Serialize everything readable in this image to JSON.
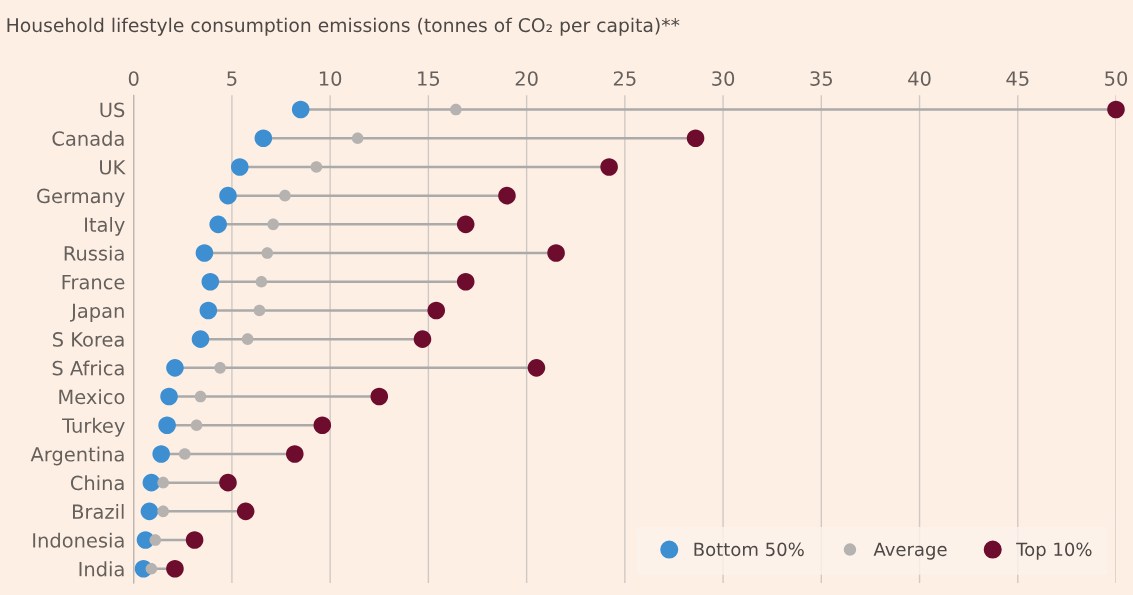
{
  "chart_data": {
    "type": "scatter",
    "orientation": "horizontal",
    "title": "Household lifestyle consumption emissions (tonnes of CO₂ per capita)**",
    "categories": [
      "US",
      "Canada",
      "UK",
      "Germany",
      "Italy",
      "Russia",
      "France",
      "Japan",
      "S Korea",
      "S Africa",
      "Mexico",
      "Turkey",
      "Argentina",
      "China",
      "Brazil",
      "Indonesia",
      "India"
    ],
    "series": [
      {
        "name": "Bottom 50%",
        "color": "#3d8fd1",
        "values": [
          8.5,
          6.6,
          5.4,
          4.8,
          4.3,
          3.6,
          3.9,
          3.8,
          3.4,
          2.1,
          1.8,
          1.7,
          1.4,
          0.9,
          0.8,
          0.6,
          0.5
        ]
      },
      {
        "name": "Average",
        "color": "#b5b2b0",
        "values": [
          16.4,
          11.4,
          9.3,
          7.7,
          7.1,
          6.8,
          6.5,
          6.4,
          5.8,
          4.4,
          3.4,
          3.2,
          2.6,
          1.5,
          1.5,
          1.1,
          0.9
        ]
      },
      {
        "name": "Top 10%",
        "color": "#6e0c2e",
        "values": [
          50,
          28.6,
          24.2,
          19.0,
          16.9,
          21.5,
          16.9,
          15.4,
          14.7,
          20.5,
          12.5,
          9.6,
          8.2,
          4.8,
          5.7,
          3.1,
          2.1
        ]
      }
    ],
    "xlim": [
      0,
      50
    ],
    "xticks": [
      0,
      5,
      10,
      15,
      20,
      25,
      30,
      35,
      40,
      45,
      50
    ],
    "grid": "x",
    "legend": "bottom right",
    "marker": "circle"
  }
}
